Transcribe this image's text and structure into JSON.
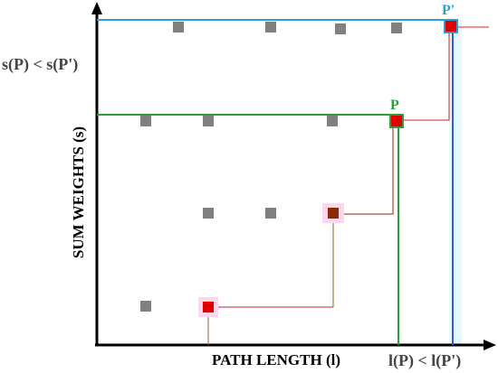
{
  "labels": {
    "y_axis": "SUM WEIGHTS (s)",
    "x_axis": "PATH LENGTH (l)",
    "y_compare": "s(P) < s(P')",
    "x_compare": "l(P) < l(P')",
    "point_p": "P",
    "point_p_prime": "P'"
  },
  "colors": {
    "axis": "#000000",
    "gray_node": "#808080",
    "path_node": "#e00000",
    "dark_node": "#8b2a00",
    "path_line": "#c0262d",
    "green": "#2e9e3a",
    "blue_top": "#2a9fd6",
    "blue_vertical": "#3a5cc9",
    "highlight": "#ffd6f0"
  }
}
